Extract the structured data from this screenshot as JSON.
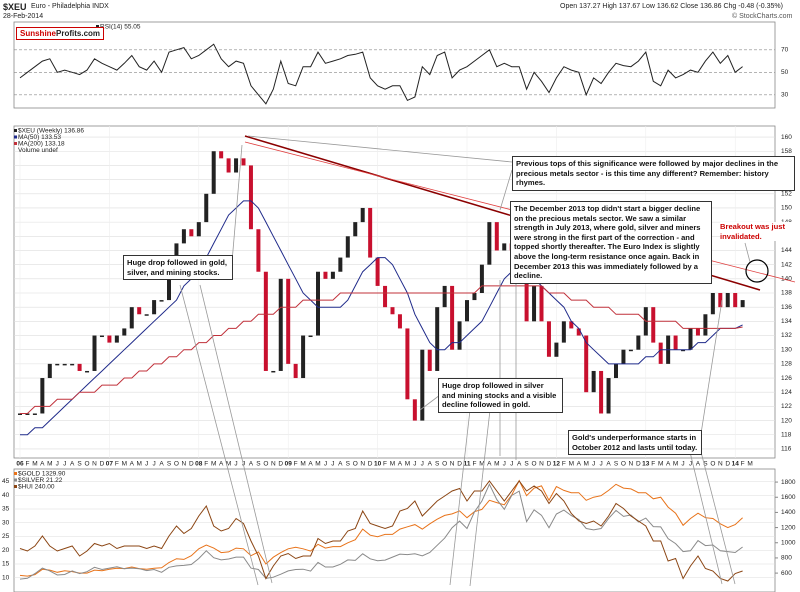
{
  "header": {
    "symbol": "$XEU",
    "name": "Euro - Philadelphia INDX",
    "date": "28-Feb-2014",
    "quote": "Open 137.27  High 137.67  Low 136.62  Close 136.86  Chg -0.48 (-0.35%)",
    "copyright": "© StockCharts.com",
    "logo": [
      "Sunshine",
      "Profits.com"
    ]
  },
  "annotations": [
    "Previous tops of this significance were followed by major declines in the precious metals sector - is this time any different? Remember: history rhymes.",
    "The December 2013 top didn't start a bigger decline on the precious metals sector. We saw a similar strength in July 2013, where gold, silver and miners were strong in the first part of the correction - and topped shortly thereafter. The Euro Index is slightly above the long-term resistance once again. Back in December 2013 this was immediately followed by a decline.",
    "Breakout was just invalidated.",
    "Huge drop followed in gold, silver, and mining stocks.",
    "Huge drop followed in silver and mining stocks and a visible decline followed in gold.",
    "Gold's underperformance starts in October 2012 and lasts until today."
  ],
  "chart_data": [
    {
      "type": "line",
      "ylim": [
        20,
        85
      ],
      "yticks": [
        30,
        50,
        70
      ],
      "series": [
        {
          "name": "RSI(14) 55.05",
          "color": "#222",
          "values": [
            45,
            50,
            55,
            60,
            62,
            50,
            52,
            50,
            48,
            52,
            62,
            58,
            55,
            52,
            58,
            65,
            55,
            52,
            60,
            50,
            68,
            70,
            72,
            62,
            65,
            70,
            75,
            62,
            55,
            60,
            58,
            38,
            30,
            22,
            35,
            60,
            40,
            38,
            55,
            55,
            68,
            58,
            60,
            62,
            65,
            66,
            68,
            45,
            38,
            35,
            38,
            38,
            25,
            28,
            55,
            48,
            65,
            68,
            45,
            52,
            55,
            60,
            65,
            70,
            55,
            58,
            55,
            55,
            35,
            50,
            42,
            32,
            45,
            55,
            52,
            50,
            30,
            45,
            40,
            50,
            58,
            56,
            55,
            60,
            68,
            42,
            38,
            52,
            45,
            48,
            52,
            50,
            60,
            68,
            58,
            65,
            50,
            55.05,
            null
          ]
        }
      ]
    },
    {
      "type": "candle",
      "ylim": [
        115,
        161
      ],
      "yticks": [
        116,
        118,
        120,
        122,
        124,
        126,
        128,
        130,
        132,
        134,
        136,
        138,
        140,
        142,
        144,
        146,
        148,
        150,
        152,
        154,
        156,
        158,
        160
      ],
      "categories": [
        "06",
        "F",
        "M",
        "A",
        "M",
        "J",
        "J",
        "A",
        "S",
        "O",
        "N",
        "D",
        "07",
        "F",
        "M",
        "A",
        "M",
        "J",
        "J",
        "A",
        "S",
        "O",
        "N",
        "D",
        "08",
        "F",
        "M",
        "A",
        "M",
        "J",
        "J",
        "A",
        "S",
        "O",
        "N",
        "D",
        "09",
        "F",
        "M",
        "A",
        "M",
        "J",
        "J",
        "A",
        "S",
        "O",
        "N",
        "D",
        "10",
        "F",
        "M",
        "A",
        "M",
        "J",
        "J",
        "A",
        "S",
        "O",
        "N",
        "D",
        "11",
        "F",
        "M",
        "A",
        "M",
        "J",
        "J",
        "A",
        "S",
        "O",
        "N",
        "D",
        "12",
        "F",
        "M",
        "A",
        "M",
        "J",
        "J",
        "A",
        "S",
        "O",
        "N",
        "D",
        "13",
        "F",
        "M",
        "A",
        "M",
        "J",
        "J",
        "A",
        "S",
        "O",
        "N",
        "D",
        "14",
        "F",
        "M"
      ],
      "volume_label": "Volume undef",
      "series": [
        {
          "name": "$XEU (Weekly) 136.86",
          "color": "#222",
          "down_color": "#c8102e",
          "values": [
            121,
            121,
            121,
            126,
            128,
            128,
            128,
            128,
            127,
            127,
            132,
            132,
            131,
            132,
            133,
            136,
            135,
            135,
            137,
            137,
            142,
            145,
            147,
            146,
            148,
            152,
            158,
            157,
            155,
            157,
            156,
            147,
            141,
            127,
            127,
            140,
            128,
            126,
            132,
            132,
            141,
            140,
            141,
            143,
            146,
            148,
            150,
            143,
            139,
            136,
            135,
            133,
            123,
            120,
            130,
            127,
            136,
            139,
            130,
            134,
            137,
            138,
            142,
            148,
            144,
            145,
            144,
            144,
            134,
            139,
            134,
            129,
            131,
            134,
            133,
            132,
            124,
            127,
            121,
            126,
            128,
            130,
            130,
            132,
            136,
            131,
            128,
            132,
            130,
            130,
            133,
            132,
            135,
            138,
            136,
            138,
            136,
            137,
            null
          ]
        },
        {
          "name": "MA(50) 133.53",
          "color": "#1f2a8a",
          "values": [
            118,
            118,
            119,
            119,
            120,
            121,
            122,
            123,
            124,
            125,
            126,
            127,
            128,
            129,
            130,
            131,
            132,
            133,
            134,
            135,
            136,
            137,
            139,
            140,
            142,
            143,
            145,
            147,
            149,
            150,
            151,
            151,
            150,
            148,
            146,
            144,
            142,
            140,
            138,
            137,
            136,
            136,
            136,
            136,
            137,
            139,
            141,
            142,
            143,
            143,
            142,
            140,
            138,
            135,
            133,
            131,
            130,
            130,
            131,
            131,
            132,
            133,
            134,
            136,
            138,
            140,
            141,
            142,
            141,
            140,
            139,
            138,
            137,
            136,
            134,
            133,
            131,
            130,
            129,
            128,
            128,
            128,
            128,
            128,
            129,
            129,
            130,
            130,
            130,
            130,
            130,
            131,
            131,
            132,
            133,
            133,
            133,
            133.5,
            null
          ]
        },
        {
          "name": "MA(200) 133.18",
          "color": "#c0303a",
          "values": [
            121,
            121,
            122,
            122,
            122,
            123,
            123,
            123,
            124,
            124,
            124,
            125,
            125,
            125,
            126,
            126,
            127,
            127,
            128,
            128,
            129,
            129,
            130,
            130,
            131,
            131,
            132,
            132,
            133,
            133,
            134,
            134,
            135,
            135,
            135,
            136,
            136,
            136,
            137,
            137,
            137,
            137,
            137,
            138,
            138,
            138,
            138,
            138,
            138,
            138,
            138,
            138,
            138,
            138,
            138,
            138,
            138,
            138,
            138,
            138,
            138,
            138,
            139,
            139,
            139,
            139,
            139,
            139,
            139,
            139,
            139,
            138,
            138,
            138,
            137,
            137,
            137,
            136,
            136,
            136,
            135,
            135,
            135,
            135,
            134,
            134,
            134,
            134,
            134,
            133,
            133,
            133,
            133,
            133,
            133,
            133,
            133,
            133.2,
            null
          ]
        }
      ]
    },
    {
      "type": "line",
      "ylim": [
        7,
        47
      ],
      "yticks": [
        10,
        15,
        20,
        25,
        30,
        35,
        40,
        45
      ],
      "y2lim": [
        430,
        1880
      ],
      "y2ticks": [
        600,
        800,
        1000,
        1200,
        1400,
        1600,
        1800
      ],
      "y3lim": [
        180,
        620
      ],
      "series": [
        {
          "name": "$GOLD 1329.90",
          "color": "#e8731a",
          "axis": "y2",
          "values": [
            570,
            560,
            580,
            650,
            640,
            610,
            630,
            620,
            600,
            600,
            640,
            630,
            650,
            665,
            660,
            680,
            660,
            650,
            665,
            670,
            740,
            790,
            780,
            830,
            920,
            970,
            930,
            870,
            880,
            930,
            920,
            830,
            880,
            720,
            810,
            870,
            920,
            940,
            920,
            890,
            980,
            930,
            950,
            950,
            1000,
            1040,
            1180,
            1100,
            1080,
            1110,
            1110,
            1180,
            1210,
            1240,
            1180,
            1250,
            1310,
            1360,
            1380,
            1420,
            1330,
            1410,
            1440,
            1560,
            1530,
            1500,
            1630,
            1820,
            1620,
            1720,
            1750,
            1560,
            1740,
            1690,
            1660,
            1660,
            1560,
            1600,
            1620,
            1690,
            1770,
            1720,
            1710,
            1660,
            1660,
            1580,
            1600,
            1470,
            1390,
            1230,
            1320,
            1390,
            1330,
            1320,
            1250,
            1200,
            1240,
            1330,
            null
          ]
        },
        {
          "name": "$SILVER 21.22",
          "color": "#8a8a8a",
          "values": [
            9.5,
            9.8,
            11.5,
            13.5,
            12.5,
            11,
            11.2,
            12.5,
            11.5,
            12.2,
            13.8,
            13,
            13.5,
            14,
            13.3,
            13.5,
            13.3,
            12.6,
            13,
            12,
            13.8,
            14.3,
            14.5,
            14.8,
            17,
            19.8,
            17.3,
            16.5,
            16.8,
            17.5,
            17.5,
            13.5,
            13,
            9.8,
            10.2,
            11.3,
            12.5,
            13,
            13.1,
            12.4,
            15.6,
            13.9,
            13.9,
            14.9,
            16.5,
            16.3,
            18.7,
            16.9,
            16.2,
            16.4,
            17.5,
            18.6,
            18.4,
            18.7,
            18,
            19.2,
            21.8,
            24.4,
            28.2,
            30.6,
            27.9,
            33.9,
            37.9,
            44,
            38.4,
            34.9,
            39.9,
            41.5,
            30.4,
            34.7,
            32.7,
            28.2,
            33.2,
            34.6,
            32.6,
            31.2,
            27.9,
            27.4,
            27.9,
            31.6,
            34.5,
            32.3,
            32.8,
            30.3,
            31.7,
            28.6,
            28.5,
            24.2,
            22.4,
            19.5,
            19.8,
            23.5,
            21.7,
            21.9,
            19.8,
            19.5,
            19.2,
            21.2,
            null
          ]
        },
        {
          "name": "$HUI 240.00",
          "color": "#8b4513",
          "axis": "y3",
          "values": [
            330,
            320,
            340,
            380,
            340,
            320,
            330,
            340,
            300,
            320,
            350,
            340,
            350,
            330,
            340,
            340,
            340,
            330,
            340,
            330,
            380,
            420,
            390,
            410,
            460,
            500,
            420,
            400,
            410,
            450,
            430,
            360,
            300,
            210,
            260,
            300,
            310,
            290,
            300,
            300,
            370,
            350,
            360,
            360,
            400,
            410,
            480,
            430,
            420,
            410,
            420,
            480,
            490,
            520,
            460,
            490,
            520,
            540,
            560,
            570,
            520,
            560,
            560,
            600,
            560,
            520,
            560,
            600,
            560,
            580,
            560,
            510,
            550,
            520,
            470,
            440,
            430,
            440,
            420,
            460,
            510,
            490,
            460,
            440,
            420,
            360,
            360,
            280,
            290,
            210,
            260,
            300,
            250,
            240,
            210,
            200,
            230,
            240,
            null
          ]
        }
      ]
    }
  ]
}
